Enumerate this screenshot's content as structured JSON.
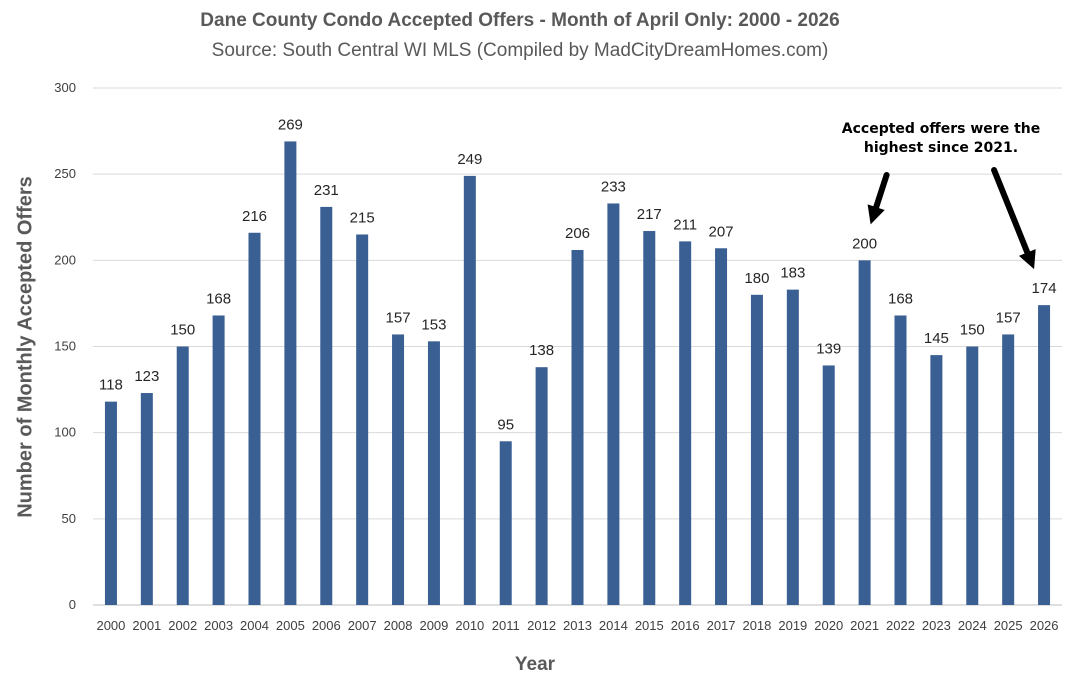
{
  "chart_data": {
    "type": "bar",
    "title": "Dane County Condo Accepted Offers - Month of April Only: 2000 - 2026",
    "subtitle": "Source: South Central WI MLS (Compiled by MadCityDreamHomes.com)",
    "xlabel": "Year",
    "ylabel": "Number of Monthly Accepted Offers",
    "ylim": [
      0,
      300
    ],
    "yticks": [
      0,
      50,
      100,
      150,
      200,
      250,
      300
    ],
    "grid": true,
    "bar_color": "#3A5F93",
    "categories": [
      "2000",
      "2001",
      "2002",
      "2003",
      "2004",
      "2005",
      "2006",
      "2007",
      "2008",
      "2009",
      "2010",
      "2011",
      "2012",
      "2013",
      "2014",
      "2015",
      "2016",
      "2017",
      "2018",
      "2019",
      "2020",
      "2021",
      "2022",
      "2023",
      "2024",
      "2025",
      "2026"
    ],
    "values": [
      118,
      123,
      150,
      168,
      216,
      269,
      231,
      215,
      157,
      153,
      249,
      95,
      138,
      206,
      233,
      217,
      211,
      207,
      180,
      183,
      139,
      200,
      168,
      145,
      150,
      157,
      174
    ],
    "annotation": {
      "text_line1": "Accepted offers were the",
      "text_line2": "highest since 2021.",
      "points_to": [
        "2021",
        "2026"
      ]
    }
  }
}
